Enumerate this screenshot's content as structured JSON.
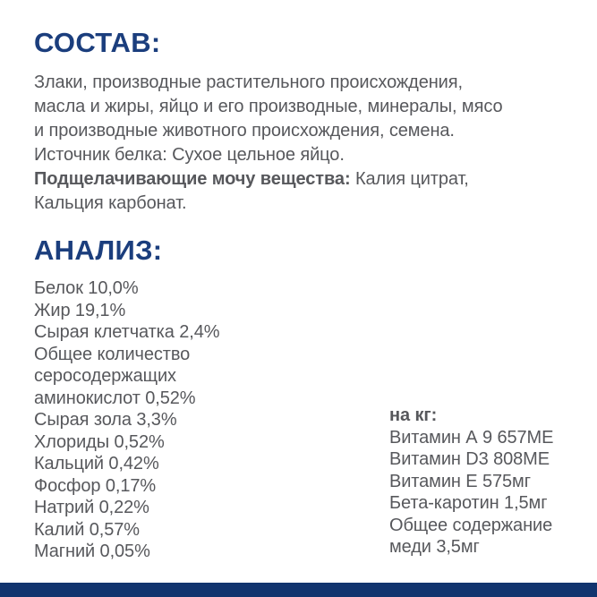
{
  "colors": {
    "heading": "#1B3E7D",
    "body_text": "#57585C",
    "bottom_bar": "#11346E",
    "background": "#FFFFFF"
  },
  "composition": {
    "heading": "СОСТАВ:",
    "body": "Злаки, производные растительного происхождения,\nмасла и жиры, яйцо и его производные, минералы, мясо\nи производные животного происхождения, семена.\nИсточник белка: Сухое цельное яйцо.\n",
    "alkalizing_label": "Подщелачивающие мочу вещества:",
    "alkalizing_value": " Калия цитрат,\nКальция карбонат."
  },
  "analysis": {
    "heading": "АНАЛИЗ:",
    "items": [
      "Белок 10,0%",
      "Жир 19,1%",
      "Сырая клетчатка 2,4%",
      "Общее количество",
      "серосодержащих",
      "аминокислот 0,52%",
      "Сырая зола 3,3%",
      "Хлориды 0,52%",
      "Кальций 0,42%",
      "Фосфор 0,17%",
      "Натрий 0,22%",
      "Калий 0,57%",
      "Магний 0,05%"
    ]
  },
  "per_kg": {
    "label": "на кг:",
    "items": [
      "Витамин А 9 657МЕ",
      "Витамин D3 808МЕ",
      "Витамин Е 575мг",
      "Бета-каротин 1,5мг",
      "Общее содержание",
      "меди 3,5мг"
    ]
  }
}
